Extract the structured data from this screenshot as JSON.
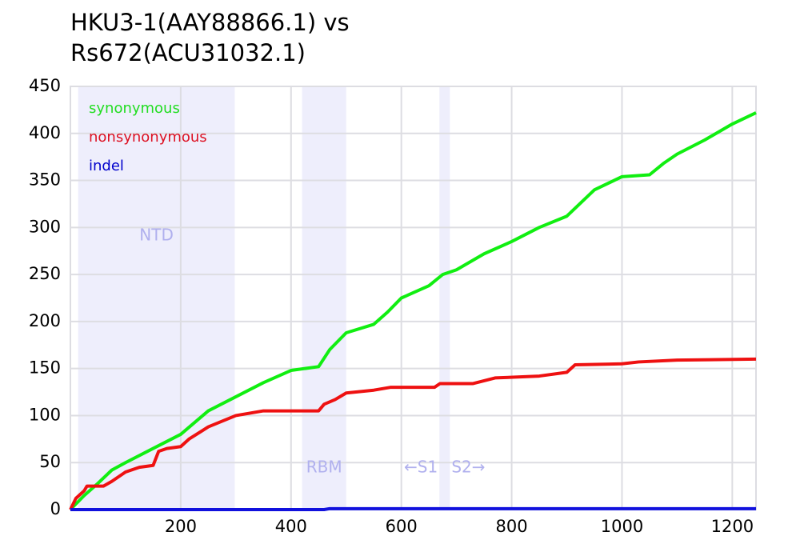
{
  "chart_data": {
    "type": "line",
    "title": [
      "HKU3-1(AAY88866.1) vs",
      "Rs672(ACU31032.1)"
    ],
    "xlim": [
      0,
      1243
    ],
    "ylim": [
      0,
      450
    ],
    "xticks": [
      200,
      400,
      600,
      800,
      1000,
      1200
    ],
    "yticks": [
      0,
      50,
      100,
      150,
      200,
      250,
      300,
      350,
      400,
      450
    ],
    "grid": true,
    "legend": "upper left",
    "regions": [
      {
        "label": "NTD",
        "start": 14,
        "end": 298,
        "color": "#eeeefc"
      },
      {
        "label": "RBM",
        "start": 420,
        "end": 500,
        "color": "#eeeefc"
      },
      {
        "left_label": "←S1",
        "right_label": "S2→",
        "start": 669,
        "end": 688,
        "color": "#eeeefc"
      }
    ],
    "series": [
      {
        "name": "synonymous",
        "color": "#11ee11",
        "label_color": "#22dd22",
        "x": [
          0,
          25,
          50,
          75,
          100,
          150,
          200,
          250,
          300,
          350,
          400,
          450,
          470,
          500,
          550,
          575,
          600,
          650,
          675,
          700,
          750,
          800,
          850,
          900,
          950,
          1000,
          1050,
          1075,
          1100,
          1150,
          1200,
          1243
        ],
        "values": [
          0,
          15,
          28,
          42,
          50,
          65,
          80,
          105,
          120,
          135,
          148,
          152,
          170,
          188,
          197,
          210,
          225,
          238,
          250,
          255,
          272,
          285,
          300,
          312,
          340,
          354,
          356,
          368,
          378,
          393,
          410,
          422
        ]
      },
      {
        "name": "nonsynonymous",
        "color": "#ee1111",
        "label_color": "#dd1122",
        "x": [
          0,
          10,
          25,
          30,
          60,
          75,
          100,
          125,
          150,
          160,
          175,
          200,
          215,
          250,
          300,
          350,
          450,
          460,
          480,
          500,
          550,
          580,
          660,
          670,
          730,
          770,
          850,
          900,
          915,
          1000,
          1030,
          1100,
          1243
        ],
        "values": [
          0,
          12,
          20,
          25,
          25,
          30,
          40,
          45,
          47,
          62,
          65,
          67,
          75,
          88,
          100,
          105,
          105,
          112,
          117,
          124,
          127,
          130,
          130,
          134,
          134,
          140,
          142,
          146,
          154,
          155,
          157,
          159,
          160
        ]
      },
      {
        "name": "indel",
        "color": "#1111dd",
        "label_color": "#0000cc",
        "x": [
          0,
          460,
          470,
          1243
        ],
        "values": [
          0,
          0,
          1,
          1
        ]
      }
    ]
  }
}
